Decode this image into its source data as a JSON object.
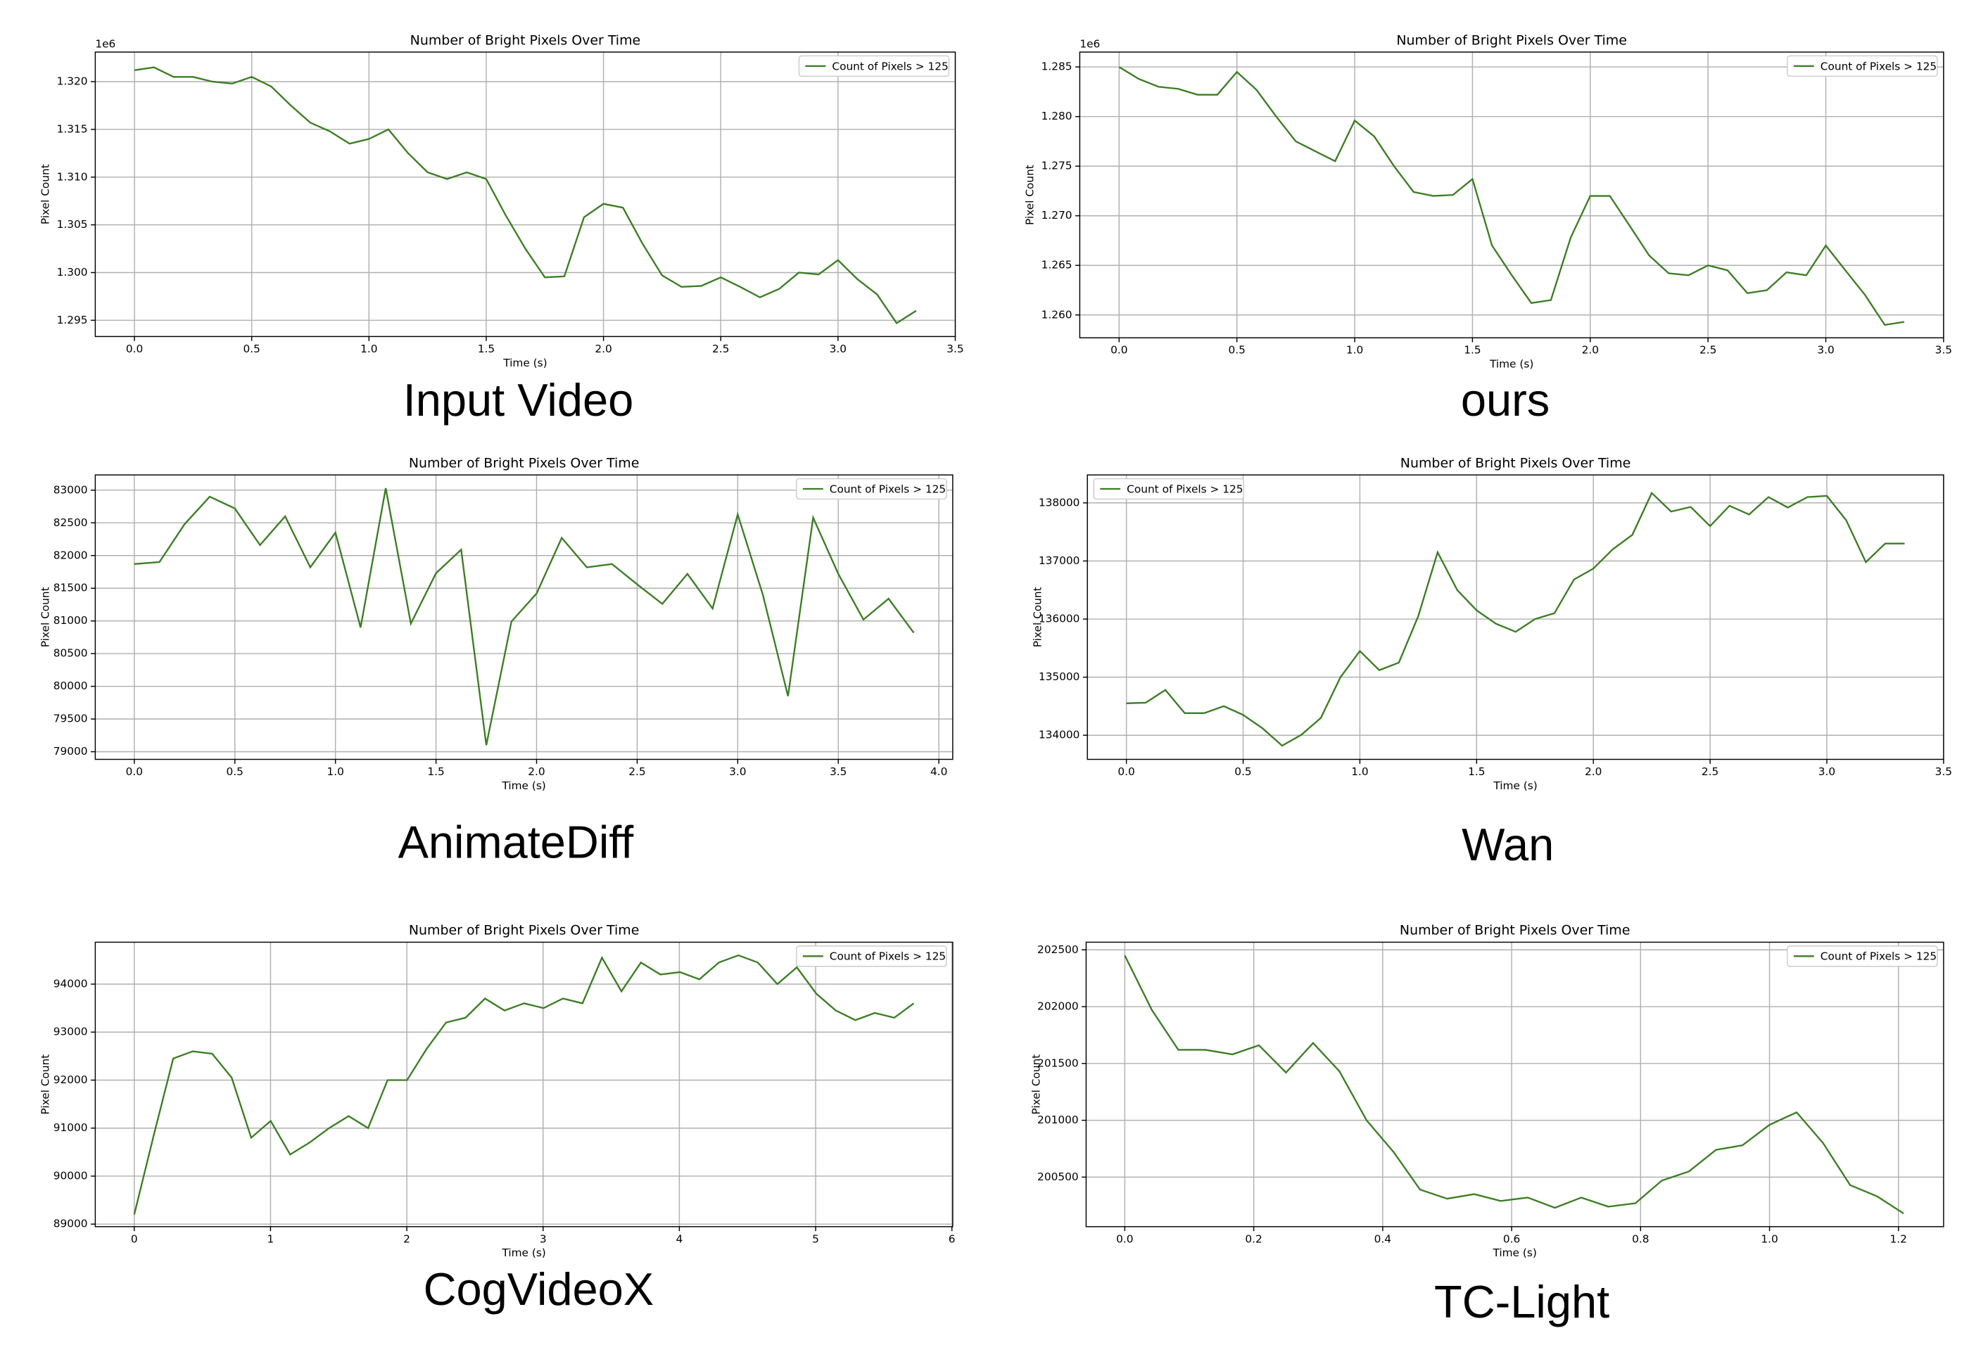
{
  "chart_data": [
    {
      "type": "line",
      "title": "Number of Bright Pixels Over Time",
      "xlabel": "Time (s)",
      "ylabel": "Pixel Count",
      "caption": "Input Video",
      "offset_label": "1e6",
      "legend": "upper right",
      "grid": true,
      "x": [
        0,
        0.083,
        0.167,
        0.25,
        0.333,
        0.417,
        0.5,
        0.583,
        0.667,
        0.75,
        0.833,
        0.917,
        1.0,
        1.083,
        1.167,
        1.25,
        1.333,
        1.417,
        1.5,
        1.583,
        1.667,
        1.75,
        1.833,
        1.917,
        2.0,
        2.083,
        2.167,
        2.25,
        2.333,
        2.417,
        2.5,
        2.583,
        2.667,
        2.75,
        2.833,
        2.917,
        3.0,
        3.083,
        3.167,
        3.25,
        3.333
      ],
      "series": [
        {
          "name": "Count of Pixels > 125",
          "color": "#3b7d23",
          "values": [
            1.3212,
            1.3215,
            1.3205,
            1.3205,
            1.32,
            1.3198,
            1.3205,
            1.3195,
            1.3175,
            1.3157,
            1.3148,
            1.3135,
            1.314,
            1.315,
            1.3125,
            1.3105,
            1.3098,
            1.3105,
            1.3098,
            1.306,
            1.3025,
            1.2995,
            1.2996,
            1.3058,
            1.3072,
            1.3068,
            1.303,
            1.2997,
            1.2985,
            1.2986,
            1.2995,
            1.2985,
            1.2974,
            1.2983,
            1.3,
            1.2998,
            1.3013,
            1.2993,
            1.2977,
            1.2947,
            1.296
          ]
        }
      ],
      "xlim": [
        -0.167,
        3.5
      ],
      "xticks": [
        {
          "value": 0,
          "label": "0.0"
        },
        0.5,
        {
          "value": 1,
          "label": "1.0"
        },
        1.5,
        {
          "value": 2,
          "label": "2.0"
        },
        2.5,
        {
          "value": 3,
          "label": "3.0"
        },
        3.5
      ],
      "ylim": [
        1.2933,
        1.3231
      ],
      "yticks": [
        1.295,
        {
          "value": 1.3,
          "label": "1.300"
        },
        1.305,
        {
          "value": 1.31,
          "label": "1.310"
        },
        1.315,
        {
          "value": 1.32,
          "label": "1.320"
        }
      ]
    },
    {
      "type": "line",
      "title": "Number of Bright Pixels Over Time",
      "xlabel": "Time (s)",
      "ylabel": "Pixel Count",
      "caption": "ours",
      "offset_label": "1e6",
      "legend": "upper right",
      "grid": true,
      "x": [
        0,
        0.083,
        0.167,
        0.25,
        0.333,
        0.417,
        0.5,
        0.583,
        0.667,
        0.75,
        0.833,
        0.917,
        1.0,
        1.083,
        1.167,
        1.25,
        1.333,
        1.417,
        1.5,
        1.583,
        1.667,
        1.75,
        1.833,
        1.917,
        2.0,
        2.083,
        2.167,
        2.25,
        2.333,
        2.417,
        2.5,
        2.583,
        2.667,
        2.75,
        2.833,
        2.917,
        3.0,
        3.083,
        3.167,
        3.25,
        3.333
      ],
      "series": [
        {
          "name": "Count of Pixels > 125",
          "color": "#3b7d23",
          "values": [
            1.285,
            1.2838,
            1.283,
            1.2828,
            1.2822,
            1.2822,
            1.2845,
            1.2827,
            1.28,
            1.2775,
            1.2765,
            1.2755,
            1.2796,
            1.278,
            1.275,
            1.2724,
            1.272,
            1.2721,
            1.2737,
            1.267,
            1.264,
            1.2612,
            1.2615,
            1.2678,
            1.272,
            1.272,
            1.269,
            1.266,
            1.2642,
            1.264,
            1.265,
            1.2645,
            1.2622,
            1.2625,
            1.2643,
            1.264,
            1.267,
            1.2645,
            1.262,
            1.259,
            1.2593
          ]
        }
      ],
      "xlim": [
        -0.167,
        3.5
      ],
      "xticks": [
        {
          "value": 0,
          "label": "0.0"
        },
        0.5,
        {
          "value": 1,
          "label": "1.0"
        },
        1.5,
        {
          "value": 2,
          "label": "2.0"
        },
        2.5,
        {
          "value": 3,
          "label": "3.0"
        },
        3.5
      ],
      "ylim": [
        1.2577,
        1.2865
      ],
      "yticks": [
        {
          "value": 1.26,
          "label": "1.260"
        },
        1.265,
        {
          "value": 1.27,
          "label": "1.270"
        },
        1.275,
        {
          "value": 1.28,
          "label": "1.280"
        },
        1.285
      ]
    },
    {
      "type": "line",
      "title": "Number of Bright Pixels Over Time",
      "xlabel": "Time (s)",
      "ylabel": "Pixel Count",
      "caption": "AnimateDiff",
      "legend": "upper right",
      "grid": true,
      "x": [
        0,
        0.125,
        0.25,
        0.375,
        0.5,
        0.625,
        0.75,
        0.875,
        1.0,
        1.125,
        1.25,
        1.375,
        1.5,
        1.625,
        1.75,
        1.875,
        2.0,
        2.125,
        2.25,
        2.375,
        2.5,
        2.625,
        2.75,
        2.875,
        3.0,
        3.125,
        3.25,
        3.375,
        3.5,
        3.625,
        3.75,
        3.875
      ],
      "series": [
        {
          "name": "Count of Pixels > 125",
          "color": "#3b7d23",
          "values": [
            81870,
            81900,
            82480,
            82900,
            82720,
            82160,
            82600,
            81820,
            82350,
            80900,
            83030,
            80960,
            81730,
            82090,
            79100,
            80990,
            81420,
            82270,
            81820,
            81870,
            81560,
            81260,
            81720,
            81190,
            82630,
            81400,
            79850,
            82580,
            81720,
            81020,
            81340,
            80820
          ]
        }
      ],
      "xlim": [
        -0.194,
        4.069
      ],
      "xticks": [
        {
          "value": 0,
          "label": "0.0"
        },
        0.5,
        {
          "value": 1,
          "label": "1.0"
        },
        1.5,
        {
          "value": 2,
          "label": "2.0"
        },
        2.5,
        {
          "value": 3,
          "label": "3.0"
        },
        3.5,
        {
          "value": 4,
          "label": "4.0"
        }
      ],
      "ylim": [
        78883,
        83233
      ],
      "yticks": [
        79000,
        79500,
        80000,
        80500,
        81000,
        81500,
        82000,
        82500,
        83000
      ]
    },
    {
      "type": "line",
      "title": "Number of Bright Pixels Over Time",
      "xlabel": "Time (s)",
      "ylabel": "Pixel Count",
      "caption": "Wan",
      "legend": "upper left",
      "grid": true,
      "x": [
        0,
        0.083,
        0.167,
        0.25,
        0.333,
        0.417,
        0.5,
        0.583,
        0.667,
        0.75,
        0.833,
        0.917,
        1.0,
        1.083,
        1.167,
        1.25,
        1.333,
        1.417,
        1.5,
        1.583,
        1.667,
        1.75,
        1.833,
        1.917,
        2.0,
        2.083,
        2.167,
        2.25,
        2.333,
        2.417,
        2.5,
        2.583,
        2.667,
        2.75,
        2.833,
        2.917,
        3.0,
        3.083,
        3.167,
        3.25,
        3.333
      ],
      "series": [
        {
          "name": "Count of Pixels > 125",
          "color": "#3b7d23",
          "values": [
            134550,
            134560,
            134780,
            134380,
            134380,
            134500,
            134350,
            134120,
            133820,
            134010,
            134300,
            135000,
            135450,
            135120,
            135250,
            136050,
            137150,
            136500,
            136150,
            135920,
            135780,
            136000,
            136100,
            136680,
            136870,
            137200,
            137450,
            138170,
            137850,
            137930,
            137600,
            137950,
            137800,
            138100,
            137920,
            138100,
            138120,
            137700,
            136980,
            137300,
            137300
          ]
        }
      ],
      "xlim": [
        -0.167,
        3.5
      ],
      "xticks": [
        {
          "value": 0,
          "label": "0.0"
        },
        0.5,
        {
          "value": 1,
          "label": "1.0"
        },
        1.5,
        {
          "value": 2,
          "label": "2.0"
        },
        2.5,
        {
          "value": 3,
          "label": "3.0"
        },
        3.5
      ],
      "ylim": [
        133585,
        138481
      ],
      "yticks": [
        134000,
        135000,
        136000,
        137000,
        138000
      ]
    },
    {
      "type": "line",
      "title": "Number of Bright Pixels Over Time",
      "xlabel": "Time (s)",
      "ylabel": "Pixel Count",
      "caption": "CogVideoX",
      "legend": "upper right",
      "grid": true,
      "x": [
        0,
        0.143,
        0.286,
        0.429,
        0.572,
        0.715,
        0.858,
        1.001,
        1.144,
        1.287,
        1.43,
        1.573,
        1.716,
        1.859,
        2.002,
        2.145,
        2.288,
        2.431,
        2.574,
        2.717,
        2.86,
        3.003,
        3.146,
        3.289,
        3.432,
        3.575,
        3.718,
        3.861,
        4.004,
        4.147,
        4.29,
        4.433,
        4.576,
        4.719,
        4.862,
        5.005,
        5.148,
        5.291,
        5.434,
        5.577,
        5.72
      ],
      "series": [
        {
          "name": "Count of Pixels > 125",
          "color": "#3b7d23",
          "values": [
            89200,
            90850,
            92450,
            92600,
            92550,
            92050,
            90800,
            91150,
            90450,
            90700,
            91000,
            91250,
            91000,
            92000,
            92000,
            92650,
            93200,
            93300,
            93700,
            93450,
            93600,
            93500,
            93700,
            93600,
            94550,
            93850,
            94450,
            94200,
            94250,
            94100,
            94450,
            94600,
            94450,
            94000,
            94350,
            93800,
            93450,
            93250,
            93400,
            93300,
            93600
          ]
        }
      ],
      "xlim": [
        -0.286,
        6.006
      ],
      "xticks": [
        0,
        1,
        2,
        3,
        4,
        5,
        6
      ],
      "ylim": [
        88947,
        94873
      ],
      "yticks": [
        89000,
        90000,
        91000,
        92000,
        93000,
        94000
      ]
    },
    {
      "type": "line",
      "title": "Number of Bright Pixels Over Time",
      "xlabel": "Time (s)",
      "ylabel": "Pixel Count",
      "caption": "TC-Light",
      "legend": "upper right",
      "grid": true,
      "x": [
        0,
        0.042,
        0.083,
        0.125,
        0.167,
        0.208,
        0.25,
        0.292,
        0.333,
        0.375,
        0.417,
        0.458,
        0.5,
        0.542,
        0.583,
        0.625,
        0.667,
        0.708,
        0.75,
        0.792,
        0.833,
        0.875,
        0.917,
        0.958,
        1.0,
        1.042,
        1.083,
        1.125,
        1.167,
        1.208
      ],
      "series": [
        {
          "name": "Count of Pixels > 125",
          "color": "#3b7d23",
          "values": [
            202450,
            201970,
            201620,
            201620,
            201580,
            201660,
            201420,
            201680,
            201430,
            201000,
            200720,
            200390,
            200310,
            200350,
            200290,
            200320,
            200230,
            200320,
            200240,
            200270,
            200470,
            200550,
            200740,
            200780,
            200960,
            201070,
            200800,
            200430,
            200330,
            200180
          ]
        }
      ],
      "xlim": [
        -0.06,
        1.27
      ],
      "xticks": [
        {
          "value": 0,
          "label": "0.0"
        },
        0.2,
        0.4,
        0.6,
        0.8,
        {
          "value": 1,
          "label": "1.0"
        },
        1.2
      ],
      "ylim": [
        200064,
        202567
      ],
      "yticks": [
        200500,
        201000,
        201500,
        202000,
        202500
      ]
    }
  ]
}
